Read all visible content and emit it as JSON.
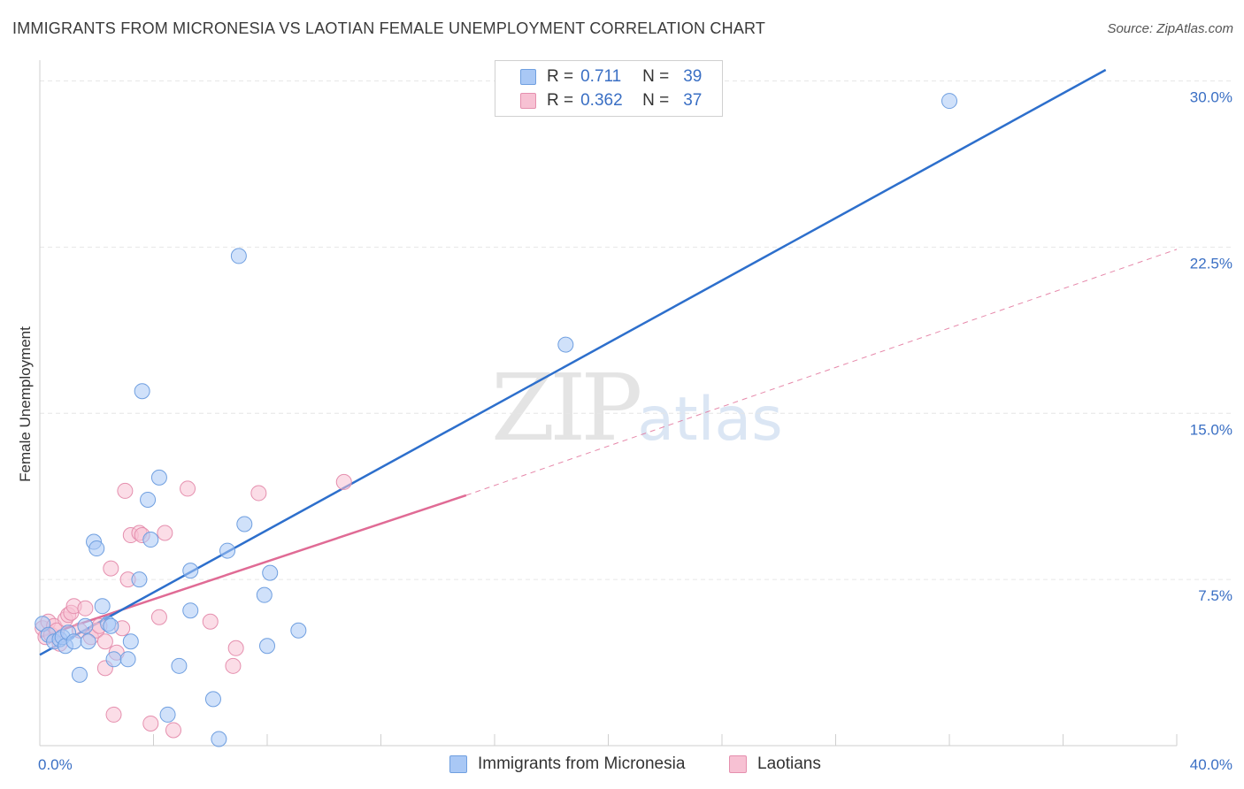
{
  "header": {
    "title": "IMMIGRANTS FROM MICRONESIA VS LAOTIAN FEMALE UNEMPLOYMENT CORRELATION CHART",
    "source": "Source: ZipAtlas.com"
  },
  "watermark": {
    "zip": "ZIP",
    "atlas": "atlas"
  },
  "legend": {
    "rows": [
      {
        "r_label": "R =",
        "r_value": "0.711",
        "n_label": "N =",
        "n_value": "39",
        "color": "#a9c8f5",
        "border": "#6f9fe0"
      },
      {
        "r_label": "R =",
        "r_value": "0.362",
        "n_label": "N =",
        "n_value": "37",
        "color": "#f7c1d3",
        "border": "#e58fae"
      }
    ]
  },
  "bottom_legend": [
    {
      "label": "Immigrants from Micronesia",
      "color": "#a9c8f5",
      "border": "#6f9fe0"
    },
    {
      "label": "Laotians",
      "color": "#f7c1d3",
      "border": "#e58fae"
    }
  ],
  "colors": {
    "blue_fill": "#a9c8f5",
    "blue_stroke": "#6f9fe0",
    "blue_line": "#2d6fcc",
    "pink_fill": "#f7c1d3",
    "pink_stroke": "#e58fae",
    "pink_line": "#e06b95",
    "tick_text": "#3a6fc4",
    "grid": "#e6e6e6"
  },
  "chart_data": {
    "type": "scatter",
    "title": "IMMIGRANTS FROM MICRONESIA VS LAOTIAN FEMALE UNEMPLOYMENT CORRELATION CHART",
    "xlabel": "",
    "ylabel": "Female Unemployment",
    "xlim": [
      0,
      40
    ],
    "ylim": [
      0,
      30.5
    ],
    "x_tick_labels": [
      "0.0%",
      "40.0%"
    ],
    "y_ticks": [
      7.5,
      15.0,
      22.5,
      30.0
    ],
    "y_tick_labels": [
      "7.5%",
      "15.0%",
      "22.5%",
      "30.0%"
    ],
    "grid": true,
    "legend_position": "top-center",
    "series": [
      {
        "name": "Immigrants from Micronesia",
        "R": 0.711,
        "N": 39,
        "points": [
          [
            0.1,
            5.5
          ],
          [
            0.3,
            5.0
          ],
          [
            0.5,
            4.7
          ],
          [
            0.7,
            4.8
          ],
          [
            0.8,
            4.9
          ],
          [
            0.9,
            4.5
          ],
          [
            1.0,
            5.1
          ],
          [
            1.2,
            4.7
          ],
          [
            1.4,
            3.2
          ],
          [
            1.6,
            5.4
          ],
          [
            1.7,
            4.7
          ],
          [
            1.9,
            9.2
          ],
          [
            2.0,
            8.9
          ],
          [
            2.2,
            6.3
          ],
          [
            2.4,
            5.5
          ],
          [
            2.5,
            5.4
          ],
          [
            2.6,
            3.9
          ],
          [
            3.1,
            3.9
          ],
          [
            3.2,
            4.7
          ],
          [
            3.5,
            7.5
          ],
          [
            3.6,
            16.0
          ],
          [
            3.8,
            11.1
          ],
          [
            3.9,
            9.3
          ],
          [
            4.2,
            12.1
          ],
          [
            4.5,
            1.4
          ],
          [
            4.9,
            3.6
          ],
          [
            5.3,
            7.9
          ],
          [
            5.3,
            6.1
          ],
          [
            6.1,
            2.1
          ],
          [
            6.3,
            0.3
          ],
          [
            6.6,
            8.8
          ],
          [
            7.0,
            22.1
          ],
          [
            7.2,
            10.0
          ],
          [
            7.9,
            6.8
          ],
          [
            8.0,
            4.5
          ],
          [
            8.1,
            7.8
          ],
          [
            9.1,
            5.2
          ],
          [
            18.5,
            18.1
          ],
          [
            32.0,
            29.1
          ]
        ],
        "trend": {
          "x": [
            0,
            37.5
          ],
          "y": [
            4.1,
            30.5
          ]
        }
      },
      {
        "name": "Laotians",
        "R": 0.362,
        "N": 37,
        "points": [
          [
            0.1,
            5.3
          ],
          [
            0.2,
            4.9
          ],
          [
            0.3,
            5.6
          ],
          [
            0.4,
            5.0
          ],
          [
            0.5,
            5.4
          ],
          [
            0.6,
            5.2
          ],
          [
            0.7,
            4.6
          ],
          [
            0.9,
            5.7
          ],
          [
            1.0,
            5.9
          ],
          [
            1.1,
            6.0
          ],
          [
            1.2,
            6.3
          ],
          [
            1.4,
            5.2
          ],
          [
            1.6,
            6.2
          ],
          [
            1.8,
            4.9
          ],
          [
            2.0,
            5.2
          ],
          [
            2.1,
            5.4
          ],
          [
            2.3,
            3.5
          ],
          [
            2.3,
            4.7
          ],
          [
            2.5,
            8.0
          ],
          [
            2.6,
            1.4
          ],
          [
            2.7,
            4.2
          ],
          [
            2.9,
            5.3
          ],
          [
            3.0,
            11.5
          ],
          [
            3.1,
            7.5
          ],
          [
            3.2,
            9.5
          ],
          [
            3.5,
            9.6
          ],
          [
            3.6,
            9.5
          ],
          [
            3.9,
            1.0
          ],
          [
            4.2,
            5.8
          ],
          [
            4.4,
            9.6
          ],
          [
            4.7,
            0.7
          ],
          [
            5.2,
            11.6
          ],
          [
            6.0,
            5.6
          ],
          [
            6.8,
            3.6
          ],
          [
            6.9,
            4.4
          ],
          [
            7.7,
            11.4
          ],
          [
            10.7,
            11.9
          ]
        ],
        "trend_solid": {
          "x": [
            0,
            15.0
          ],
          "y": [
            4.9,
            11.3
          ]
        },
        "trend_dashed": {
          "x": [
            15.0,
            40.0
          ],
          "y": [
            11.3,
            22.4
          ]
        }
      }
    ]
  }
}
